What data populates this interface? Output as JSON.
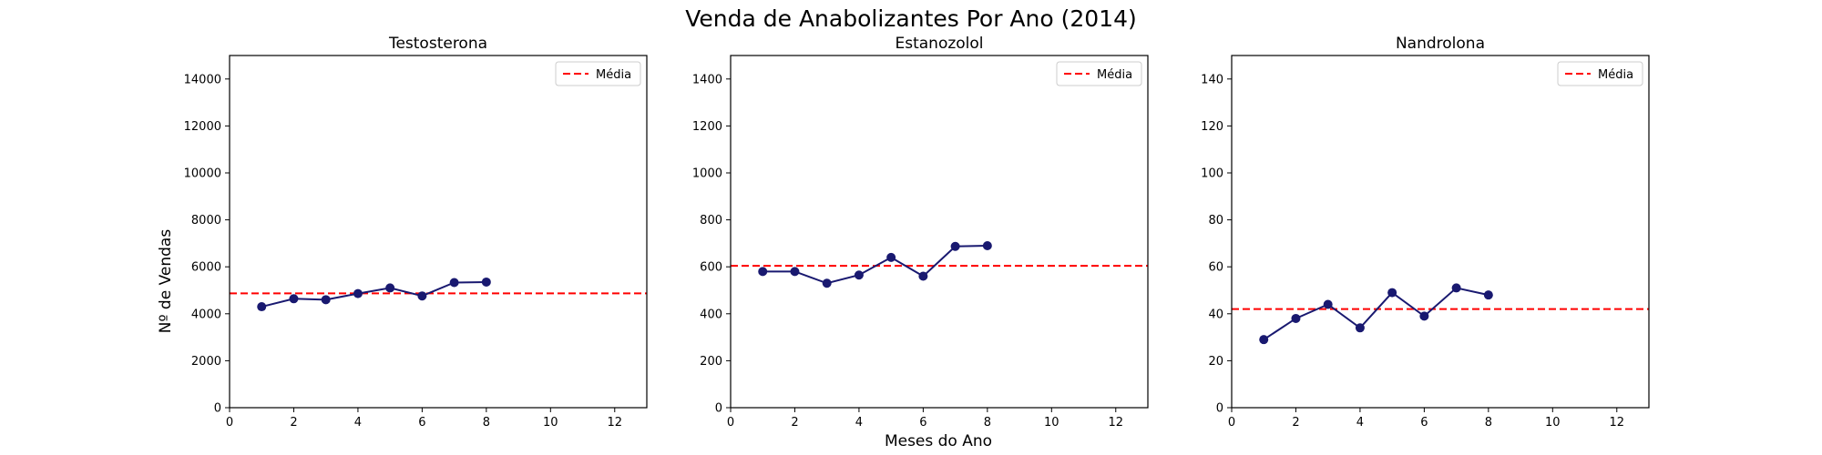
{
  "figure": {
    "title": "Venda de Anabolizantes Por Ano (2014)",
    "xlabel": "Meses do Ano",
    "ylabel": "Nº de Vendas"
  },
  "colors": {
    "line": "#191970",
    "mean": "#ff0000"
  },
  "chart_data": [
    {
      "type": "line",
      "title": "Testosterona",
      "x": [
        1,
        2,
        3,
        4,
        5,
        6,
        7,
        8
      ],
      "series": [
        {
          "values": [
            4300,
            4640,
            4600,
            4860,
            5100,
            4760,
            5330,
            5350
          ]
        },
        {
          "name": "Média",
          "style": "dashed",
          "mean": 4870
        }
      ],
      "xlim": [
        0,
        13
      ],
      "ylim": [
        0,
        15000
      ],
      "xticks": [
        0,
        2,
        4,
        6,
        8,
        10,
        12
      ],
      "yticks": [
        0,
        2000,
        4000,
        6000,
        8000,
        10000,
        12000,
        14000
      ],
      "legend": "top-right",
      "grid": false
    },
    {
      "type": "line",
      "title": "Estanozolol",
      "x": [
        1,
        2,
        3,
        4,
        5,
        6,
        7,
        8
      ],
      "series": [
        {
          "values": [
            580,
            580,
            530,
            565,
            640,
            560,
            687,
            690
          ]
        },
        {
          "name": "Média",
          "style": "dashed",
          "mean": 604
        }
      ],
      "xlim": [
        0,
        13
      ],
      "ylim": [
        0,
        1500
      ],
      "xticks": [
        0,
        2,
        4,
        6,
        8,
        10,
        12
      ],
      "yticks": [
        0,
        200,
        400,
        600,
        800,
        1000,
        1200,
        1400
      ],
      "legend": "top-right",
      "grid": false
    },
    {
      "type": "line",
      "title": "Nandrolona",
      "x": [
        1,
        2,
        3,
        4,
        5,
        6,
        7,
        8
      ],
      "series": [
        {
          "values": [
            29,
            38,
            44,
            34,
            49,
            39,
            51,
            48
          ]
        },
        {
          "name": "Média",
          "style": "dashed",
          "mean": 42
        }
      ],
      "xlim": [
        0,
        13
      ],
      "ylim": [
        0,
        150
      ],
      "xticks": [
        0,
        2,
        4,
        6,
        8,
        10,
        12
      ],
      "yticks": [
        0,
        20,
        40,
        60,
        80,
        100,
        120,
        140
      ],
      "legend": "top-right",
      "grid": false
    }
  ]
}
